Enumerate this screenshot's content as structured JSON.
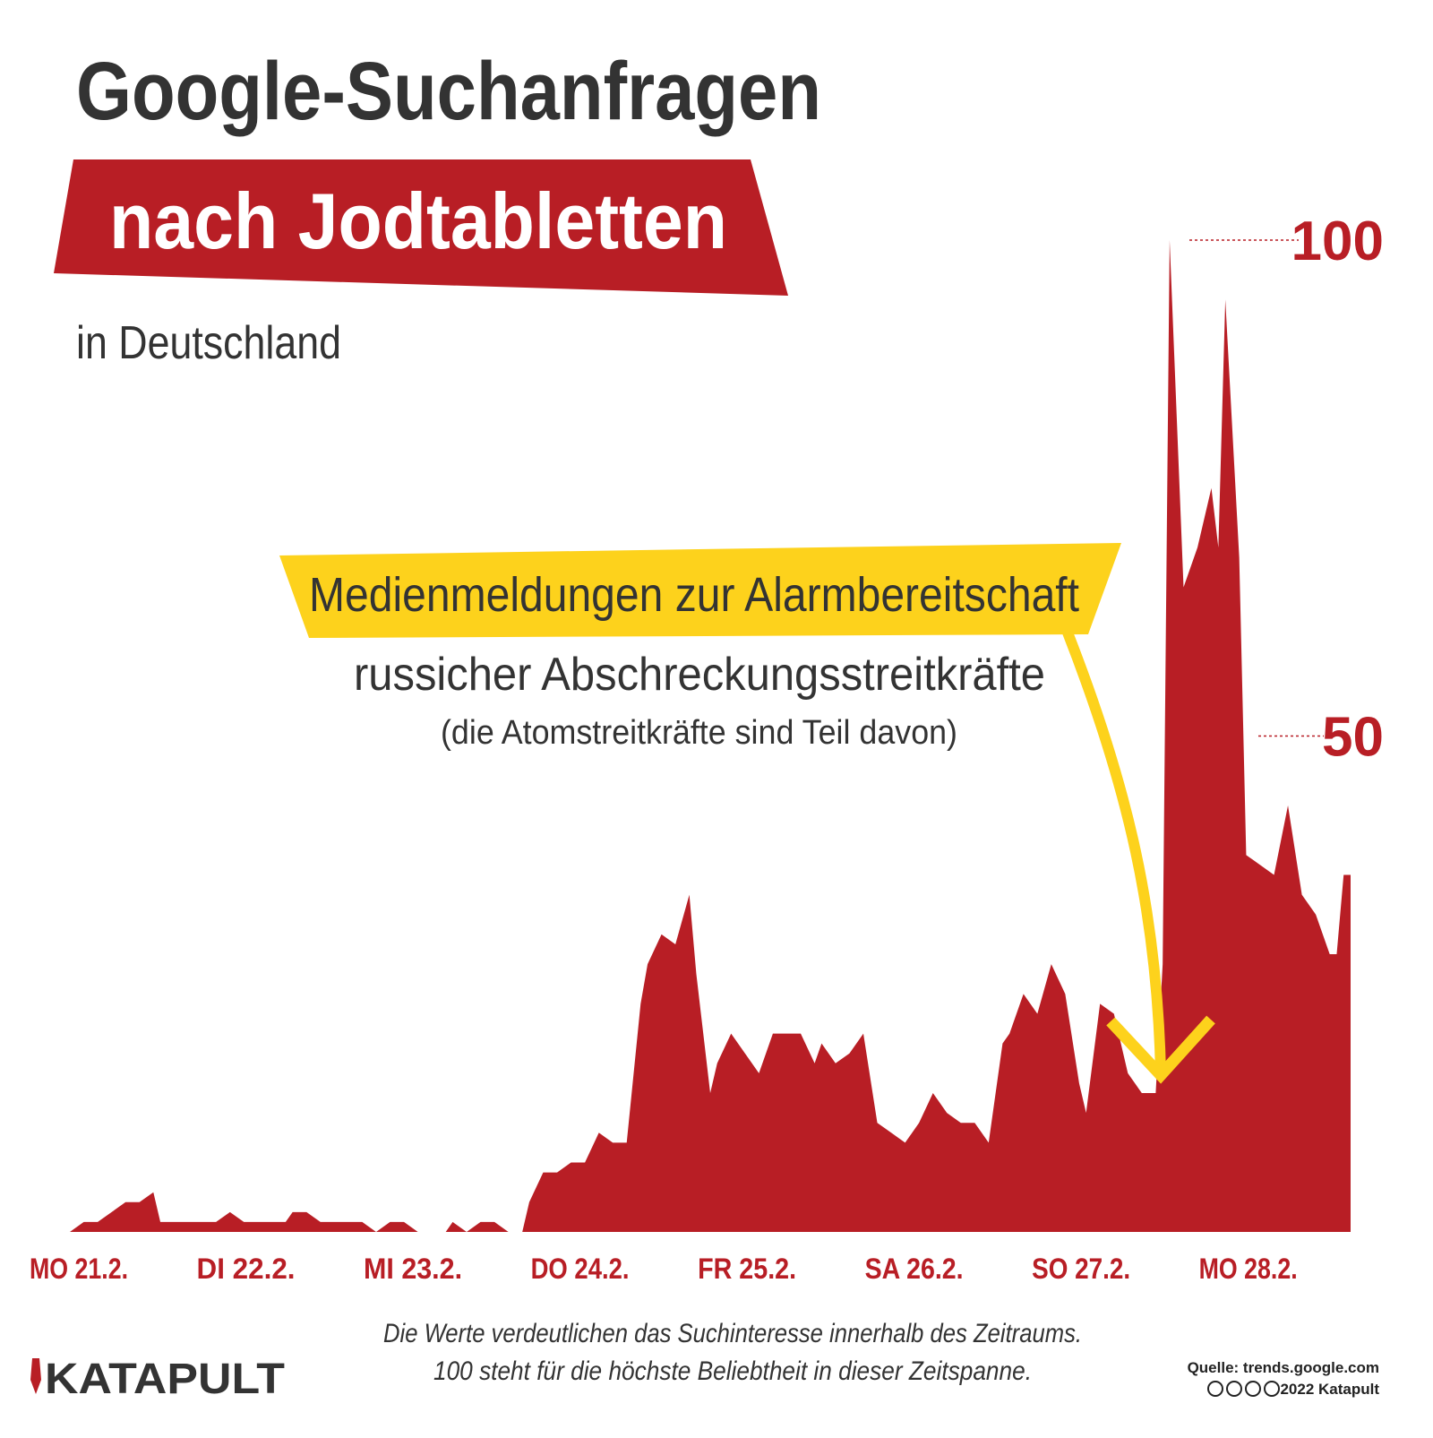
{
  "chart_data": {
    "type": "area",
    "title": "Google-Suchanfragen",
    "title_highlight": "nach Jodtabletten",
    "subtitle": "in Deutschland",
    "annotation": {
      "headline": "Medienmeldungen zur Alarmbereitschaft",
      "line1": "russicher Abschreckungsstreitkräfte",
      "line2": "(die Atomstreitkräfte sind Teil davon)"
    },
    "note": [
      "Die Werte verdeutlichen das Suchinteresse innerhalb des Zeitraums.",
      "100 steht für die höchste Beliebtheit in dieser Zeitspanne."
    ],
    "source": "Quelle: trends.google.com",
    "copyright": "2022 Katapult",
    "brand": "KATAPULT",
    "color": "#b81e25",
    "x": [
      0,
      2,
      4,
      6,
      8,
      10,
      12,
      13,
      15,
      17,
      19,
      21,
      23,
      25,
      27,
      29,
      31,
      32,
      34,
      36,
      38,
      40,
      42,
      44,
      46,
      48,
      50,
      52,
      54,
      55,
      57,
      59,
      61,
      63,
      65,
      66,
      68,
      70,
      72,
      74,
      76,
      78,
      80,
      82,
      83,
      85,
      87,
      89,
      90,
      92,
      93,
      95,
      97,
      99,
      101,
      103,
      105,
      107,
      108,
      110,
      112,
      114,
      116,
      118,
      120,
      122,
      124,
      126,
      128,
      130,
      132,
      134,
      135,
      137,
      139,
      141,
      143,
      145,
      146,
      148,
      150,
      152,
      154,
      156,
      157,
      158,
      160,
      162,
      164,
      165,
      166,
      168,
      169,
      171,
      173,
      175,
      177,
      179,
      181,
      182,
      183
    ],
    "values": [
      0,
      1,
      1,
      2,
      3,
      3,
      4,
      1,
      1,
      1,
      1,
      1,
      2,
      1,
      1,
      1,
      1,
      2,
      2,
      1,
      1,
      1,
      1,
      0,
      1,
      1,
      0,
      0,
      0,
      1,
      0,
      1,
      1,
      0,
      0,
      3,
      6,
      6,
      7,
      7,
      10,
      9,
      9,
      23,
      27,
      30,
      29,
      34,
      26,
      14,
      17,
      20,
      18,
      16,
      20,
      20,
      20,
      17,
      19,
      17,
      18,
      20,
      11,
      10,
      9,
      11,
      14,
      12,
      11,
      11,
      9,
      19,
      20,
      24,
      22,
      27,
      24,
      15,
      12,
      23,
      22,
      16,
      14,
      14,
      27,
      100,
      65,
      69,
      75,
      69,
      94,
      68,
      38,
      37,
      36,
      43,
      34,
      32,
      28,
      28,
      36
    ],
    "xlim": [
      0,
      184
    ],
    "xticks": [
      {
        "value": 0,
        "label": "MO 21.2."
      },
      {
        "value": 24,
        "label": "DI 22.2."
      },
      {
        "value": 48,
        "label": "MI 23.2."
      },
      {
        "value": 72,
        "label": "DO 24.2."
      },
      {
        "value": 96,
        "label": "FR 25.2."
      },
      {
        "value": 120,
        "label": "SA 26.2."
      },
      {
        "value": 144,
        "label": "SO 27.2."
      },
      {
        "value": 168,
        "label": "MO 28.2."
      }
    ],
    "ylim": [
      0,
      100
    ],
    "yticks": [
      50,
      100
    ]
  }
}
